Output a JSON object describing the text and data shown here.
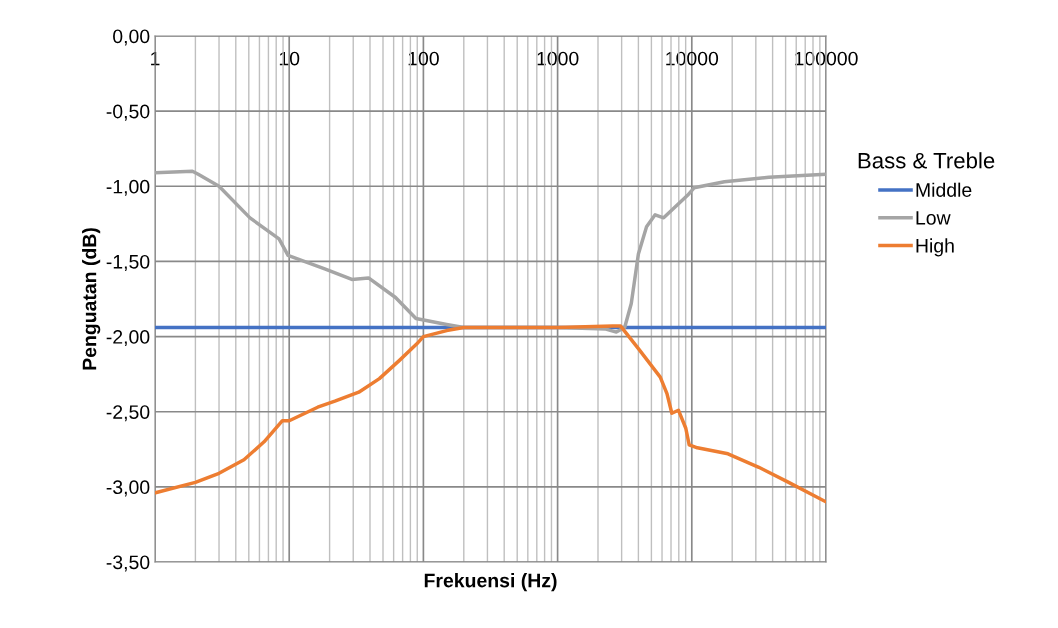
{
  "chart_data": {
    "type": "line",
    "xlabel": "Frekuensi (Hz)",
    "ylabel": "Penguatan (dB)",
    "legend_title": "Bass & Treble",
    "log": "x",
    "grid": true,
    "legend": "right",
    "marker": "none",
    "line_style": "solid",
    "xlim": [
      1,
      100000
    ],
    "xticks": [
      1,
      10,
      100,
      1000,
      10000,
      100000
    ],
    "ylim": [
      -3.5,
      0
    ],
    "yticks": [
      {
        "value": -3.5,
        "label": "-3,50"
      },
      {
        "value": -3.0,
        "label": "-3,00"
      },
      {
        "value": -2.5,
        "label": "-2,50"
      },
      {
        "value": -2.0,
        "label": "-2,00"
      },
      {
        "value": -1.5,
        "label": "-1,50"
      },
      {
        "value": -1.0,
        "label": "-1,00"
      },
      {
        "value": -0.5,
        "label": "-0,50"
      },
      {
        "value": 0,
        "label": "0,00"
      }
    ],
    "series": [
      {
        "name": "Middle",
        "color": "#4472c4",
        "x": [
          1,
          100000
        ],
        "values": [
          -1.94,
          -1.94
        ]
      },
      {
        "name": "Low",
        "color": "#a5a5a5",
        "x": [
          1,
          1.9,
          2.1,
          3,
          5.1,
          8.4,
          9.8,
          18.4,
          29.3,
          39,
          62,
          88,
          149,
          200,
          1000,
          2290,
          2740,
          3160,
          3540,
          4000,
          4600,
          5330,
          6170,
          9300,
          10400,
          17500,
          37500,
          100000
        ],
        "values": [
          -0.91,
          -0.9,
          -0.92,
          -1.0,
          -1.21,
          -1.35,
          -1.46,
          -1.55,
          -1.62,
          -1.61,
          -1.74,
          -1.88,
          -1.92,
          -1.94,
          -1.94,
          -1.95,
          -1.97,
          -1.94,
          -1.78,
          -1.45,
          -1.27,
          -1.19,
          -1.21,
          -1.06,
          -1.01,
          -0.97,
          -0.94,
          -0.92
        ]
      },
      {
        "name": "High",
        "color": "#ed7d31",
        "x": [
          1,
          2,
          3,
          4.6,
          6.5,
          8.9,
          10,
          16.3,
          21.9,
          33,
          47,
          66,
          89,
          100,
          149,
          200,
          1000,
          2570,
          2950,
          4000,
          5820,
          6530,
          7100,
          7950,
          9020,
          9560,
          11000,
          18600,
          31600,
          52700,
          100000
        ],
        "values": [
          -3.04,
          -2.97,
          -2.91,
          -2.82,
          -2.7,
          -2.56,
          -2.56,
          -2.47,
          -2.43,
          -2.37,
          -2.28,
          -2.16,
          -2.05,
          -2.0,
          -1.96,
          -1.94,
          -1.94,
          -1.93,
          -1.93,
          -2.08,
          -2.27,
          -2.38,
          -2.51,
          -2.49,
          -2.61,
          -2.72,
          -2.74,
          -2.78,
          -2.87,
          -2.97,
          -3.1
        ]
      }
    ]
  }
}
